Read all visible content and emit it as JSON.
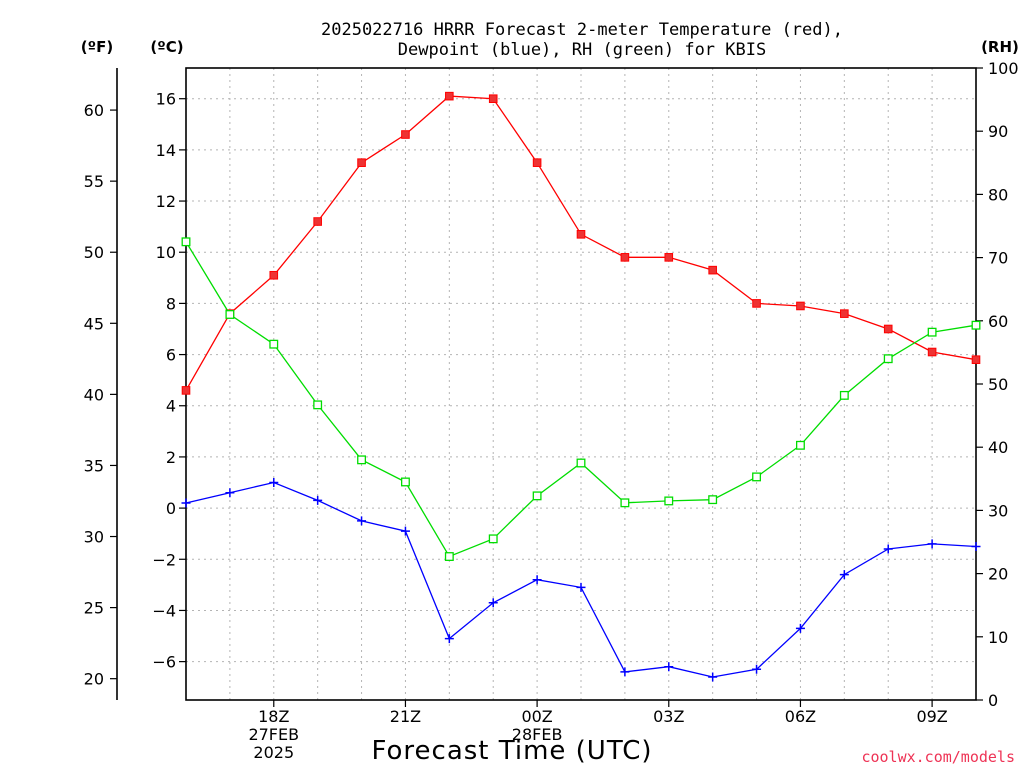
{
  "chart_data": {
    "type": "line",
    "title": "2025022716 HRRR Forecast 2-meter Temperature (red),",
    "subtitle": "Dewpoint (blue), RH (green) for KBIS",
    "xlabel": "Forecast Time (UTC)",
    "left_axis_units": [
      "(ºF)",
      "(ºC)"
    ],
    "right_axis_unit": "(RH)",
    "credit": "coolwx.com/models",
    "grid": true,
    "x": [
      16,
      17,
      18,
      19,
      20,
      21,
      22,
      23,
      24,
      25,
      26,
      27,
      28,
      29,
      30,
      31,
      32,
      33,
      34
    ],
    "x_tick_labels": [
      {
        "x": 18,
        "lines": [
          "18Z",
          "27FEB",
          "2025"
        ]
      },
      {
        "x": 21,
        "lines": [
          "21Z"
        ]
      },
      {
        "x": 24,
        "lines": [
          "00Z",
          "28FEB"
        ]
      },
      {
        "x": 27,
        "lines": [
          "03Z"
        ]
      },
      {
        "x": 30,
        "lines": [
          "06Z"
        ]
      },
      {
        "x": 33,
        "lines": [
          "09Z"
        ]
      }
    ],
    "xlim": [
      16,
      34
    ],
    "celsius_ticks": [
      "16",
      "14",
      "12",
      "10",
      "8",
      "6",
      "4",
      "2",
      "0",
      "−2",
      "−4",
      "−6"
    ],
    "fahrenheit_ticks": [
      "60",
      "55",
      "50",
      "45",
      "40",
      "35",
      "30",
      "25",
      "20"
    ],
    "rh_ticks": [
      "100",
      "90",
      "80",
      "70",
      "60",
      "50",
      "40",
      "30",
      "20",
      "10",
      "0"
    ],
    "celsius_range": [
      -7.5,
      17.2
    ],
    "rh_range": [
      0,
      100
    ],
    "series": [
      {
        "color": "#ff0000",
        "fill": "#ee3333",
        "marker": "filled-square",
        "axis": "celsius",
        "values": [
          4.6,
          7.6,
          9.1,
          11.2,
          13.5,
          14.6,
          16.1,
          16.0,
          13.5,
          10.7,
          9.8,
          9.8,
          9.3,
          8.0,
          7.9,
          7.6,
          7.0,
          6.1,
          5.8
        ]
      },
      {
        "color": "#0000ff",
        "fill": "#0000ff",
        "marker": "plus",
        "axis": "celsius",
        "values": [
          0.2,
          0.6,
          1.0,
          0.3,
          -0.5,
          -0.9,
          -5.1,
          -3.7,
          -2.8,
          -3.1,
          -6.4,
          -6.2,
          -6.6,
          -6.3,
          -4.7,
          -2.6,
          -1.6,
          -1.4,
          -1.5
        ]
      },
      {
        "color": "#00dd00",
        "fill": "#ffffff",
        "marker": "open-square",
        "axis": "rh",
        "values": [
          72.5,
          61.0,
          56.3,
          46.7,
          38.0,
          34.5,
          22.7,
          25.5,
          32.3,
          37.5,
          31.2,
          31.5,
          31.7,
          35.3,
          40.3,
          48.2,
          54.0,
          58.2,
          59.3
        ]
      }
    ]
  }
}
